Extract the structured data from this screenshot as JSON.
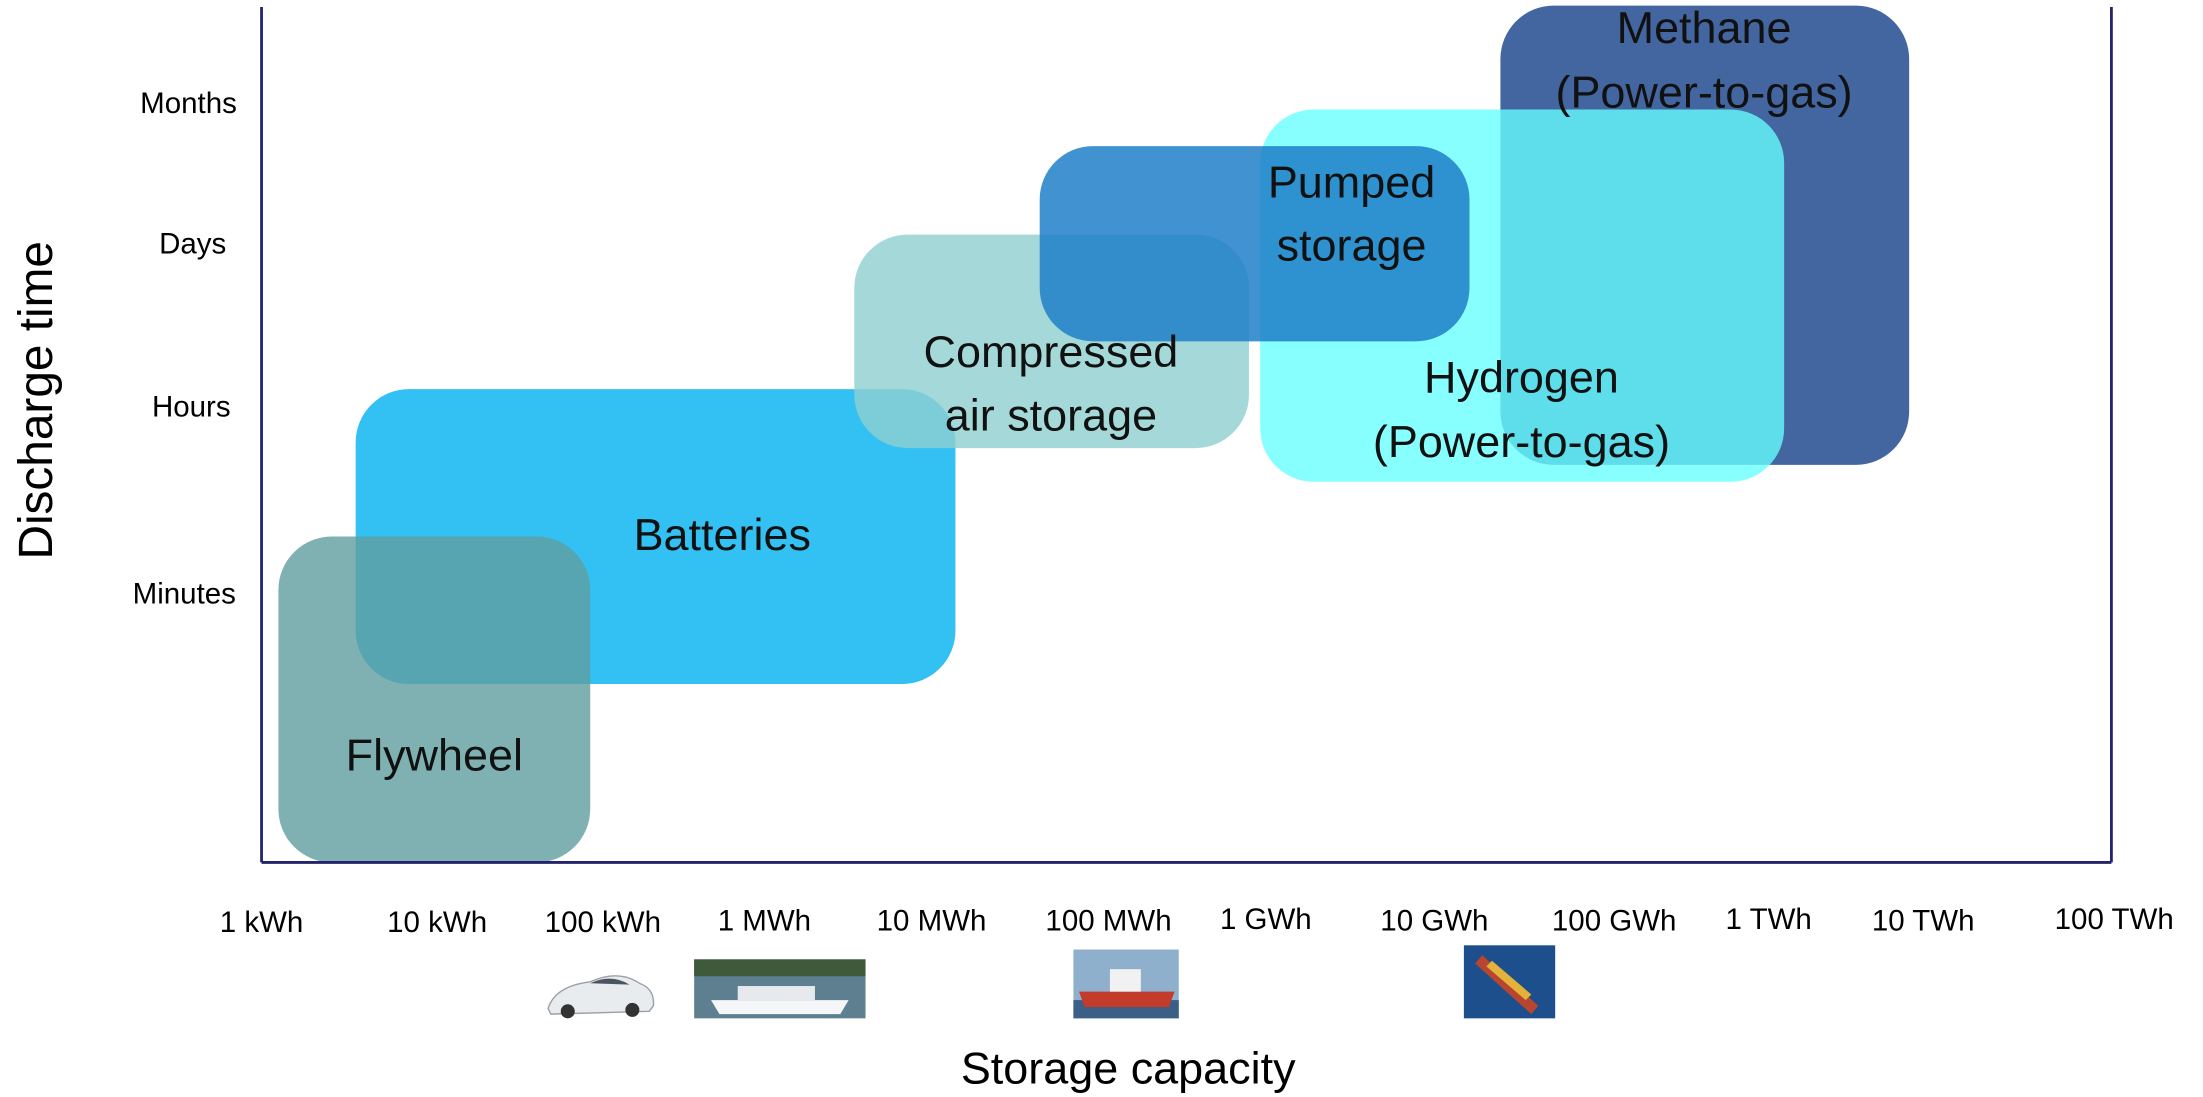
{
  "y_axis": {
    "title": "Discharge time",
    "labels": [
      "Months",
      "Days",
      "Hours",
      "Minutes"
    ]
  },
  "x_axis": {
    "title": "Storage capacity",
    "labels": [
      "1 kWh",
      "10 kWh",
      "100 kWh",
      "1 MWh",
      "10 MWh",
      "100 MWh",
      "1 GWh",
      "10 GWh",
      "100 GWh",
      "1 TWh",
      "10 TWh",
      "100 TWh"
    ]
  },
  "regions": [
    {
      "label": [
        "Batteries"
      ]
    },
    {
      "label": [
        "Flywheel"
      ]
    },
    {
      "label": [
        "Compressed",
        "air storage"
      ]
    },
    {
      "label": [
        "Methane",
        "(Power-to-gas)"
      ]
    },
    {
      "label": [
        "Hydrogen",
        "(Power-to-gas)"
      ]
    },
    {
      "label": [
        "Pumped",
        "storage"
      ]
    }
  ]
}
